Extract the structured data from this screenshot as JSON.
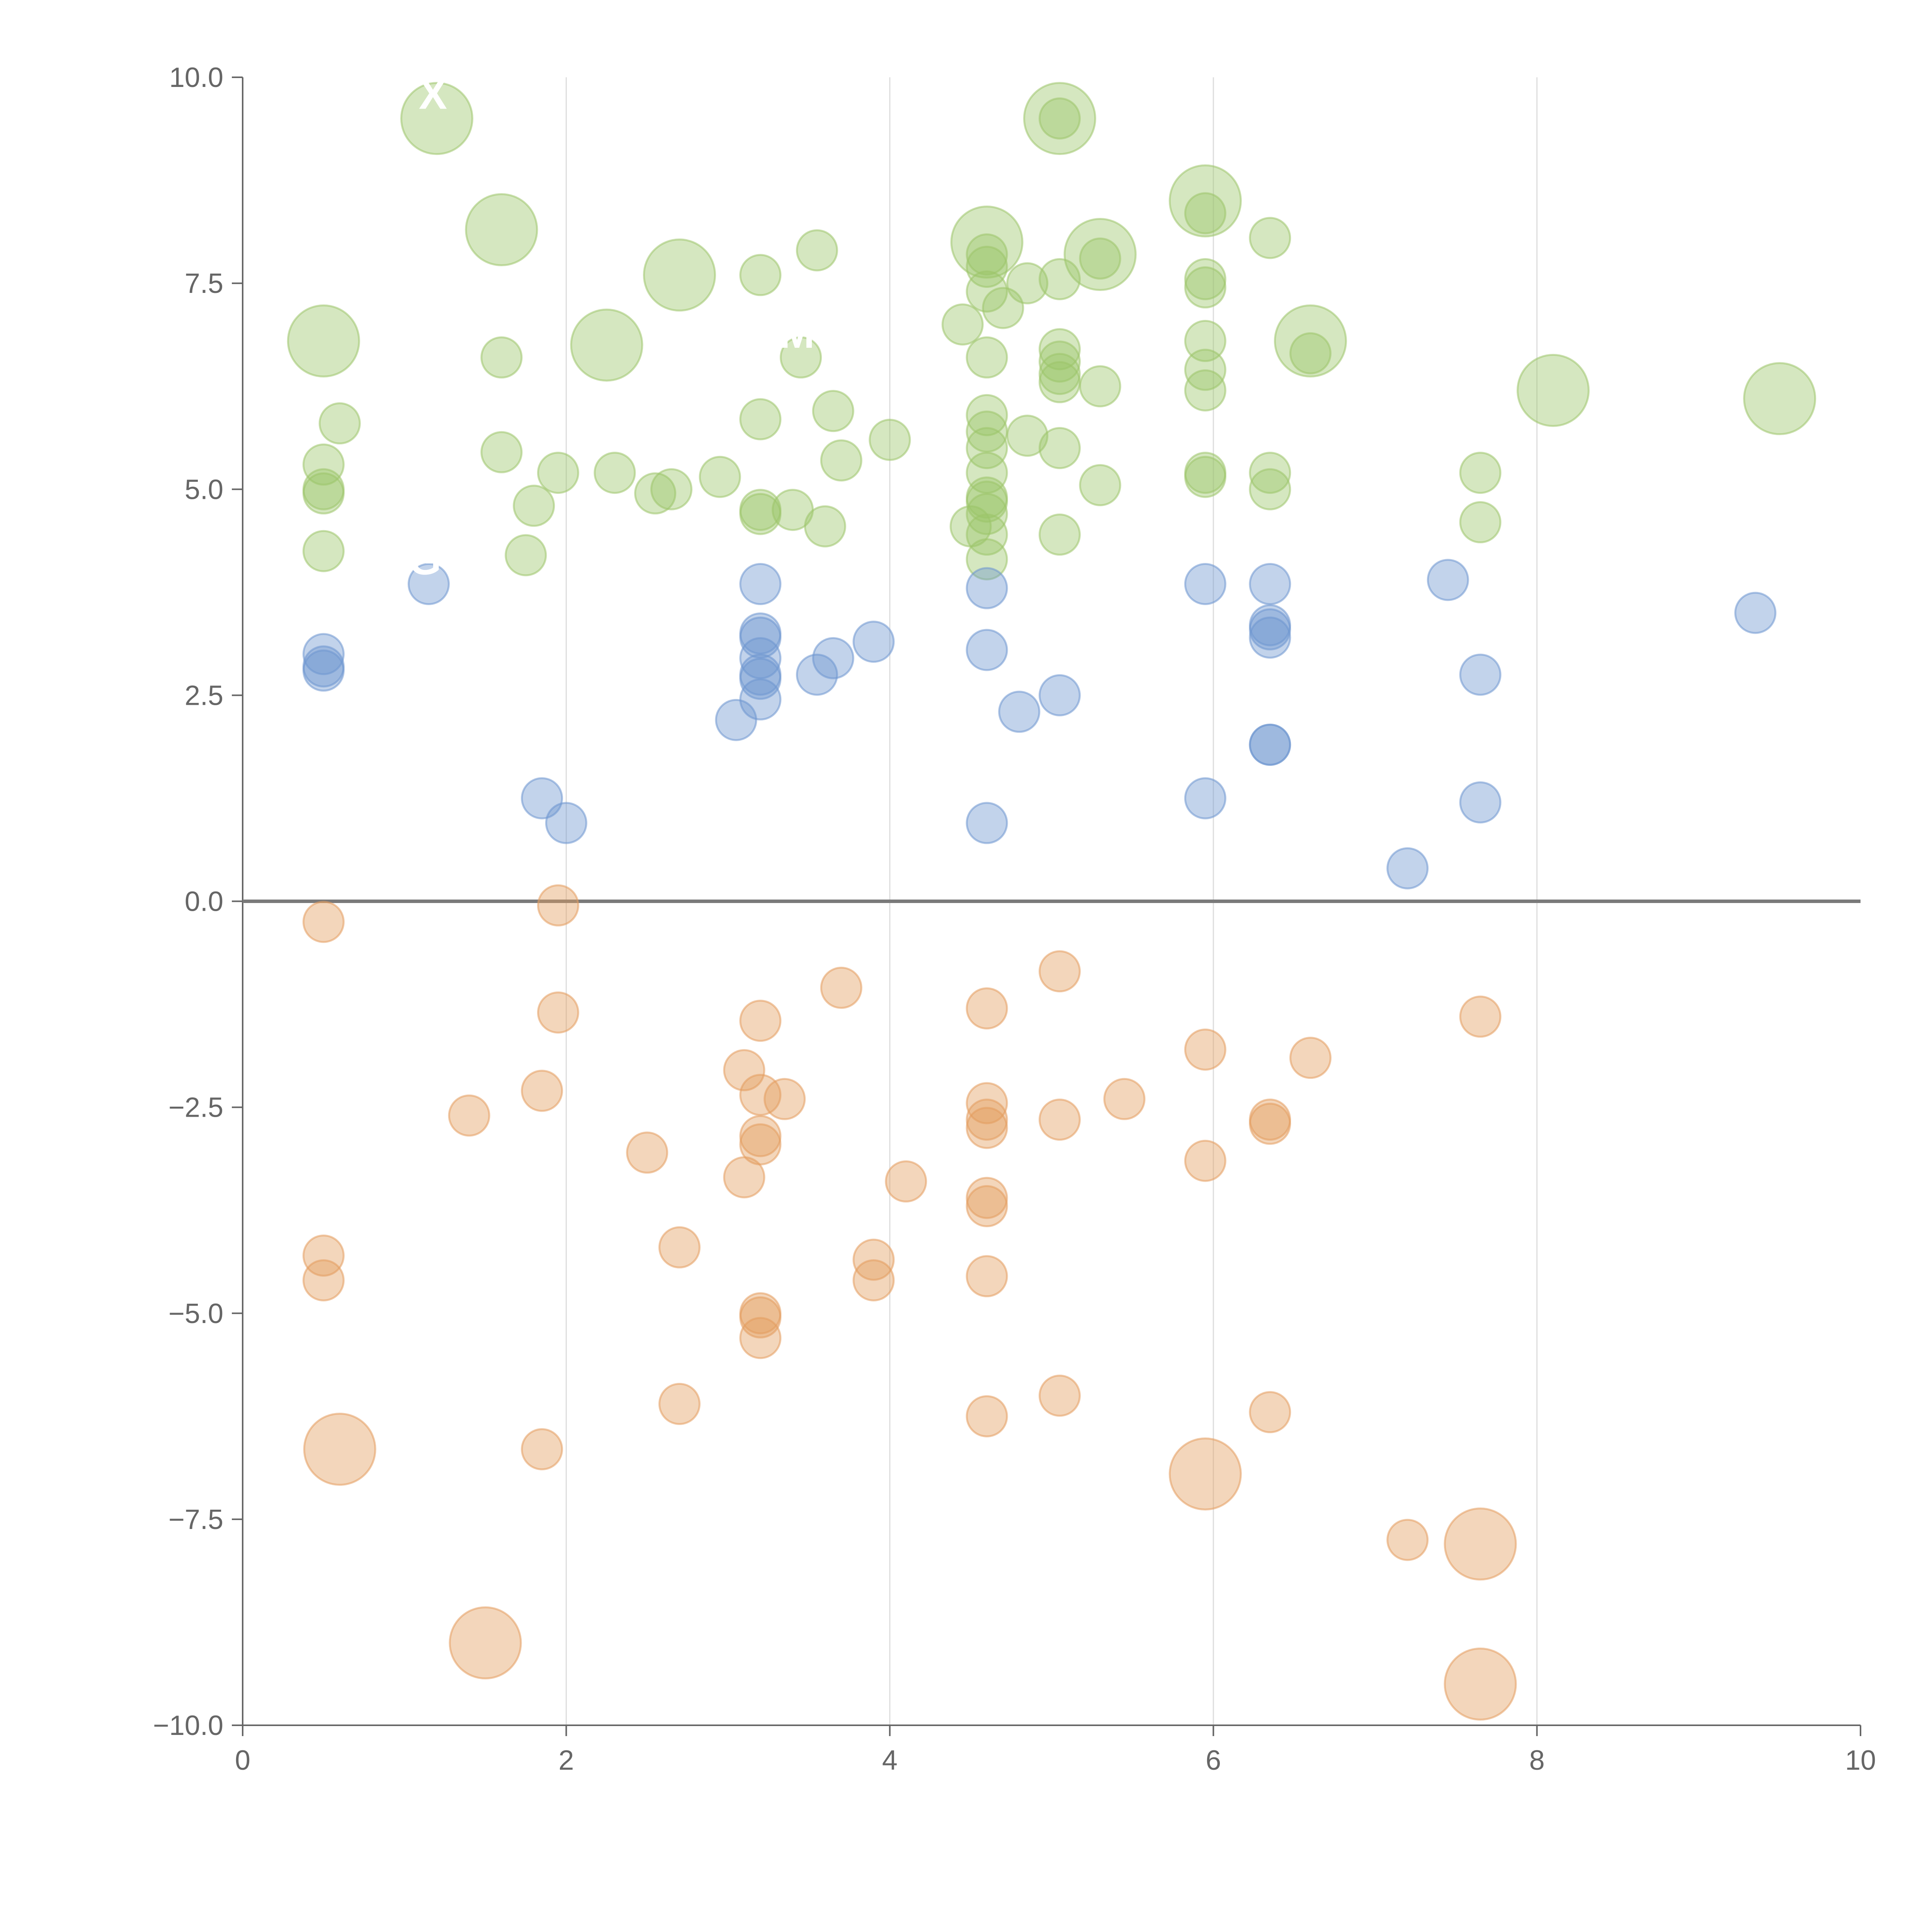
{
  "chart_data": {
    "type": "scatter",
    "title": "",
    "xlabel": "",
    "ylabel": "",
    "xlim": [
      0,
      10
    ],
    "ylim": [
      -10,
      10
    ],
    "grid": "vertical",
    "x_ticks": [
      "0",
      "2",
      "4",
      "6",
      "8",
      "10"
    ],
    "y_ticks": [
      "10.0",
      "7.5",
      "5.0",
      "2.5",
      "0.0",
      "−2.5",
      "−5.0",
      "−7.5",
      "−10.0"
    ],
    "x_tick_values": [
      0,
      2,
      4,
      6,
      8,
      10
    ],
    "y_tick_values": [
      10,
      7.5,
      5,
      2.5,
      0,
      -2.5,
      -5,
      -7.5,
      -10
    ],
    "reference_line_y": 0,
    "series": [
      {
        "name": "green",
        "color": "#9cc56a",
        "points": [
          {
            "x": 1.2,
            "y": 9.5,
            "r": 2,
            "label": "X"
          },
          {
            "x": 1.6,
            "y": 8.15,
            "r": 2
          },
          {
            "x": 2.25,
            "y": 6.75,
            "r": 2
          },
          {
            "x": 2.7,
            "y": 7.6,
            "r": 2
          },
          {
            "x": 0.5,
            "y": 6.8,
            "r": 2
          },
          {
            "x": 5.05,
            "y": 9.5,
            "r": 2
          },
          {
            "x": 4.6,
            "y": 8.0,
            "r": 2
          },
          {
            "x": 5.3,
            "y": 7.85,
            "r": 2
          },
          {
            "x": 5.95,
            "y": 8.5,
            "r": 2
          },
          {
            "x": 6.6,
            "y": 6.8,
            "r": 2
          },
          {
            "x": 8.1,
            "y": 6.2,
            "r": 2
          },
          {
            "x": 9.5,
            "y": 6.1,
            "r": 2
          },
          {
            "x": 0.6,
            "y": 5.8,
            "r": 1
          },
          {
            "x": 0.5,
            "y": 5.3,
            "r": 1
          },
          {
            "x": 0.5,
            "y": 5.0,
            "r": 1
          },
          {
            "x": 0.5,
            "y": 4.95,
            "r": 1
          },
          {
            "x": 0.5,
            "y": 4.25,
            "r": 1
          },
          {
            "x": 1.6,
            "y": 6.6,
            "r": 1
          },
          {
            "x": 1.6,
            "y": 5.45,
            "r": 1
          },
          {
            "x": 1.8,
            "y": 4.8,
            "r": 1
          },
          {
            "x": 1.75,
            "y": 4.2,
            "r": 1
          },
          {
            "x": 1.95,
            "y": 5.2,
            "r": 1
          },
          {
            "x": 2.3,
            "y": 5.2,
            "r": 1
          },
          {
            "x": 2.55,
            "y": 4.95,
            "r": 1
          },
          {
            "x": 2.65,
            "y": 5.0,
            "r": 1
          },
          {
            "x": 2.95,
            "y": 5.15,
            "r": 1
          },
          {
            "x": 3.2,
            "y": 7.6,
            "r": 1
          },
          {
            "x": 3.2,
            "y": 5.85,
            "r": 1
          },
          {
            "x": 3.2,
            "y": 4.75,
            "r": 1
          },
          {
            "x": 3.2,
            "y": 4.7,
            "r": 1
          },
          {
            "x": 3.4,
            "y": 4.75,
            "r": 1
          },
          {
            "x": 3.55,
            "y": 7.9,
            "r": 1
          },
          {
            "x": 3.45,
            "y": 6.6,
            "r": 1,
            "label": "M"
          },
          {
            "x": 3.65,
            "y": 5.95,
            "r": 1
          },
          {
            "x": 3.7,
            "y": 5.35,
            "r": 1
          },
          {
            "x": 3.6,
            "y": 4.55,
            "r": 1
          },
          {
            "x": 4.0,
            "y": 5.6,
            "r": 1
          },
          {
            "x": 4.45,
            "y": 7.0,
            "r": 1
          },
          {
            "x": 4.5,
            "y": 4.55,
            "r": 1
          },
          {
            "x": 4.6,
            "y": 7.85,
            "r": 1
          },
          {
            "x": 4.6,
            "y": 7.7,
            "r": 1
          },
          {
            "x": 4.6,
            "y": 7.4,
            "r": 1
          },
          {
            "x": 4.7,
            "y": 7.2,
            "r": 1
          },
          {
            "x": 4.6,
            "y": 6.6,
            "r": 1
          },
          {
            "x": 4.6,
            "y": 5.9,
            "r": 1
          },
          {
            "x": 4.6,
            "y": 5.7,
            "r": 1
          },
          {
            "x": 4.6,
            "y": 5.5,
            "r": 1
          },
          {
            "x": 4.6,
            "y": 5.2,
            "r": 1
          },
          {
            "x": 4.6,
            "y": 4.9,
            "r": 1
          },
          {
            "x": 4.6,
            "y": 4.85,
            "r": 1
          },
          {
            "x": 4.6,
            "y": 4.7,
            "r": 1
          },
          {
            "x": 4.6,
            "y": 4.45,
            "r": 1
          },
          {
            "x": 4.6,
            "y": 4.15,
            "r": 1
          },
          {
            "x": 4.85,
            "y": 7.5,
            "r": 1
          },
          {
            "x": 4.85,
            "y": 5.65,
            "r": 1
          },
          {
            "x": 5.05,
            "y": 9.5,
            "r": 1
          },
          {
            "x": 5.05,
            "y": 7.55,
            "r": 1
          },
          {
            "x": 5.05,
            "y": 6.7,
            "r": 1
          },
          {
            "x": 5.05,
            "y": 6.55,
            "r": 1
          },
          {
            "x": 5.05,
            "y": 6.4,
            "r": 1
          },
          {
            "x": 5.05,
            "y": 6.3,
            "r": 1
          },
          {
            "x": 5.05,
            "y": 5.5,
            "r": 1
          },
          {
            "x": 5.05,
            "y": 4.45,
            "r": 1
          },
          {
            "x": 5.3,
            "y": 7.8,
            "r": 1
          },
          {
            "x": 5.3,
            "y": 6.25,
            "r": 1
          },
          {
            "x": 5.3,
            "y": 5.05,
            "r": 1
          },
          {
            "x": 5.95,
            "y": 8.35,
            "r": 1
          },
          {
            "x": 5.95,
            "y": 7.55,
            "r": 1
          },
          {
            "x": 5.95,
            "y": 7.45,
            "r": 1
          },
          {
            "x": 5.95,
            "y": 6.8,
            "r": 1
          },
          {
            "x": 5.95,
            "y": 6.45,
            "r": 1
          },
          {
            "x": 5.95,
            "y": 6.2,
            "r": 1
          },
          {
            "x": 5.95,
            "y": 5.2,
            "r": 1
          },
          {
            "x": 5.95,
            "y": 5.15,
            "r": 1
          },
          {
            "x": 6.35,
            "y": 8.05,
            "r": 1
          },
          {
            "x": 6.35,
            "y": 5.2,
            "r": 1
          },
          {
            "x": 6.35,
            "y": 5.0,
            "r": 1
          },
          {
            "x": 6.6,
            "y": 6.65,
            "r": 1
          },
          {
            "x": 7.65,
            "y": 5.2,
            "r": 1
          },
          {
            "x": 7.65,
            "y": 4.6,
            "r": 1
          }
        ]
      },
      {
        "name": "blue",
        "color": "#6d96cf",
        "points": [
          {
            "x": 1.15,
            "y": 3.85,
            "r": 1,
            "label": "G"
          },
          {
            "x": 0.5,
            "y": 3.0,
            "r": 1
          },
          {
            "x": 0.5,
            "y": 2.85,
            "r": 1
          },
          {
            "x": 0.5,
            "y": 2.8,
            "r": 1
          },
          {
            "x": 1.85,
            "y": 1.25,
            "r": 1
          },
          {
            "x": 2.0,
            "y": 0.95,
            "r": 1
          },
          {
            "x": 3.05,
            "y": 2.2,
            "r": 1
          },
          {
            "x": 3.2,
            "y": 3.85,
            "r": 1
          },
          {
            "x": 3.2,
            "y": 3.25,
            "r": 1
          },
          {
            "x": 3.2,
            "y": 3.2,
            "r": 1
          },
          {
            "x": 3.2,
            "y": 2.95,
            "r": 1
          },
          {
            "x": 3.2,
            "y": 2.75,
            "r": 1
          },
          {
            "x": 3.2,
            "y": 2.7,
            "r": 1
          },
          {
            "x": 3.2,
            "y": 2.45,
            "r": 1
          },
          {
            "x": 3.55,
            "y": 2.75,
            "r": 1
          },
          {
            "x": 3.65,
            "y": 2.95,
            "r": 1
          },
          {
            "x": 3.9,
            "y": 3.15,
            "r": 1
          },
          {
            "x": 4.6,
            "y": 3.8,
            "r": 1
          },
          {
            "x": 4.6,
            "y": 3.05,
            "r": 1
          },
          {
            "x": 4.6,
            "y": 0.95,
            "r": 1
          },
          {
            "x": 4.8,
            "y": 2.3,
            "r": 1
          },
          {
            "x": 5.05,
            "y": 2.5,
            "r": 1
          },
          {
            "x": 5.95,
            "y": 3.85,
            "r": 1
          },
          {
            "x": 5.95,
            "y": 1.25,
            "r": 1
          },
          {
            "x": 6.35,
            "y": 3.85,
            "r": 1
          },
          {
            "x": 6.35,
            "y": 3.35,
            "r": 1
          },
          {
            "x": 6.35,
            "y": 3.3,
            "r": 1
          },
          {
            "x": 6.35,
            "y": 3.2,
            "r": 1
          },
          {
            "x": 6.35,
            "y": 1.9,
            "r": 1
          },
          {
            "x": 6.35,
            "y": 1.9,
            "r": 1
          },
          {
            "x": 7.2,
            "y": 0.4,
            "r": 1
          },
          {
            "x": 7.45,
            "y": 3.9,
            "r": 1
          },
          {
            "x": 7.65,
            "y": 2.75,
            "r": 1
          },
          {
            "x": 7.65,
            "y": 1.2,
            "r": 1
          },
          {
            "x": 9.35,
            "y": 3.5,
            "r": 1
          }
        ]
      },
      {
        "name": "orange",
        "color": "#e39d5e",
        "points": [
          {
            "x": 0.6,
            "y": -6.65,
            "r": 2
          },
          {
            "x": 1.5,
            "y": -9.0,
            "r": 2
          },
          {
            "x": 5.95,
            "y": -6.95,
            "r": 2
          },
          {
            "x": 7.65,
            "y": -7.8,
            "r": 2
          },
          {
            "x": 7.65,
            "y": -9.5,
            "r": 2
          },
          {
            "x": 0.5,
            "y": -0.25,
            "r": 1
          },
          {
            "x": 1.95,
            "y": -0.05,
            "r": 1
          },
          {
            "x": 1.95,
            "y": -1.35,
            "r": 1
          },
          {
            "x": 1.4,
            "y": -2.6,
            "r": 1
          },
          {
            "x": 1.85,
            "y": -2.3,
            "r": 1
          },
          {
            "x": 0.5,
            "y": -4.3,
            "r": 1
          },
          {
            "x": 0.5,
            "y": -4.6,
            "r": 1
          },
          {
            "x": 1.85,
            "y": -6.65,
            "r": 1
          },
          {
            "x": 2.5,
            "y": -3.05,
            "r": 1
          },
          {
            "x": 2.7,
            "y": -4.2,
            "r": 1
          },
          {
            "x": 2.7,
            "y": -6.1,
            "r": 1
          },
          {
            "x": 3.1,
            "y": -2.05,
            "r": 1
          },
          {
            "x": 3.2,
            "y": -1.45,
            "r": 1
          },
          {
            "x": 3.2,
            "y": -2.35,
            "r": 1
          },
          {
            "x": 3.35,
            "y": -2.4,
            "r": 1
          },
          {
            "x": 3.2,
            "y": -2.85,
            "r": 1
          },
          {
            "x": 3.2,
            "y": -2.95,
            "r": 1
          },
          {
            "x": 3.1,
            "y": -3.35,
            "r": 1
          },
          {
            "x": 3.2,
            "y": -5.0,
            "r": 1
          },
          {
            "x": 3.2,
            "y": -5.05,
            "r": 1
          },
          {
            "x": 3.2,
            "y": -5.3,
            "r": 1
          },
          {
            "x": 3.7,
            "y": -1.05,
            "r": 1
          },
          {
            "x": 3.9,
            "y": -4.35,
            "r": 1
          },
          {
            "x": 3.9,
            "y": -4.6,
            "r": 1
          },
          {
            "x": 4.1,
            "y": -3.4,
            "r": 1
          },
          {
            "x": 4.6,
            "y": -1.3,
            "r": 1
          },
          {
            "x": 4.6,
            "y": -2.45,
            "r": 1
          },
          {
            "x": 4.6,
            "y": -2.65,
            "r": 1
          },
          {
            "x": 4.6,
            "y": -2.75,
            "r": 1
          },
          {
            "x": 4.6,
            "y": -3.6,
            "r": 1
          },
          {
            "x": 4.6,
            "y": -3.7,
            "r": 1
          },
          {
            "x": 4.6,
            "y": -4.55,
            "r": 1
          },
          {
            "x": 4.6,
            "y": -6.25,
            "r": 1
          },
          {
            "x": 5.05,
            "y": -0.85,
            "r": 1
          },
          {
            "x": 5.05,
            "y": -2.65,
            "r": 1
          },
          {
            "x": 5.05,
            "y": -6.0,
            "r": 1
          },
          {
            "x": 5.45,
            "y": -2.4,
            "r": 1
          },
          {
            "x": 5.95,
            "y": -1.8,
            "r": 1
          },
          {
            "x": 5.95,
            "y": -3.15,
            "r": 1
          },
          {
            "x": 6.35,
            "y": -2.65,
            "r": 1
          },
          {
            "x": 6.35,
            "y": -2.7,
            "r": 1
          },
          {
            "x": 6.35,
            "y": -6.2,
            "r": 1
          },
          {
            "x": 6.6,
            "y": -1.9,
            "r": 1
          },
          {
            "x": 7.2,
            "y": -7.75,
            "r": 1
          },
          {
            "x": 7.65,
            "y": -1.4,
            "r": 1
          }
        ]
      }
    ]
  }
}
